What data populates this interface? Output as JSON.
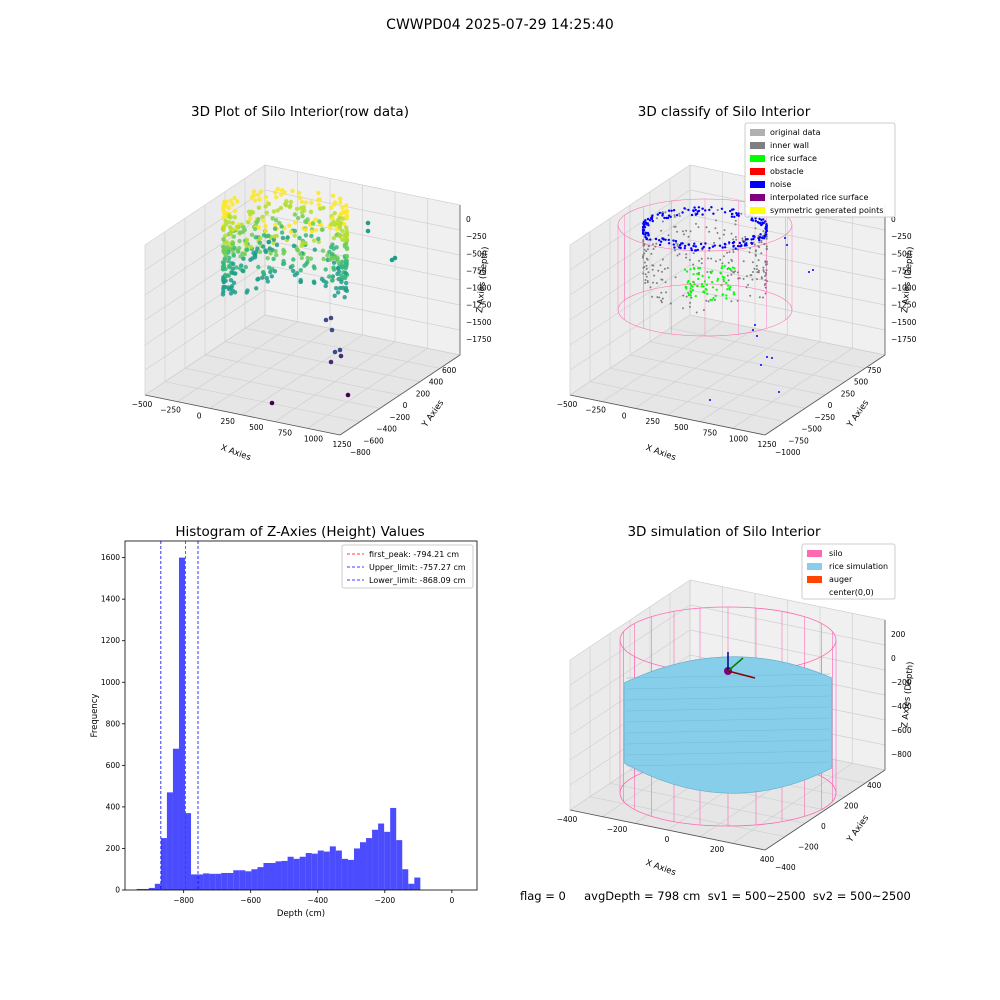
{
  "page": {
    "suptitle": "CWWPD04 2025-07-29 14:25:40",
    "bottom_text": "flag = 0     avgDepth = 798 cm  sv1 = 500~2500  sv2 = 500~2500"
  },
  "colors": {
    "histogram_bar": "#0000ff",
    "first_peak_line": "#ff0000",
    "limit_lines": "#0000ff",
    "silo": "#ff69b4",
    "rice_simulation": "#87ceeb",
    "auger": "#ff4500",
    "original_data": "#b0b0b0",
    "inner_wall": "#808080",
    "rice_surface": "#00ff00",
    "obstacle": "#ff0000",
    "noise": "#0000ff",
    "interpolated_rice_surface": "#800080",
    "symmetric_generated_points": "#ffff00"
  },
  "chart_data": [
    {
      "type": "scatter",
      "subtype": "scatter3d",
      "title": "3D Plot of Silo Interior(row data)",
      "xlabel": "X Axies",
      "ylabel": "Y Axies",
      "zlabel": "Z Axies (Depth)",
      "x_ticks": [
        "−500",
        "−250",
        "0",
        "250",
        "500",
        "750",
        "1000",
        "1250"
      ],
      "y_ticks": [
        "600",
        "400",
        "200",
        "0",
        "−200",
        "−400",
        "−600",
        "−800"
      ],
      "z_ticks": [
        "0",
        "−250",
        "−500",
        "−750",
        "−1000",
        "−1250",
        "−1500",
        "−1750"
      ],
      "colormap": "viridis by depth",
      "description_points": "dense cylindrical point cloud of silo wall near top plus scattered outlier points below"
    },
    {
      "type": "scatter",
      "subtype": "scatter3d",
      "title": "3D classify of Silo Interior",
      "xlabel": "X Axies",
      "ylabel": "Y Axies",
      "zlabel": "Z Axies (Depth)",
      "x_ticks": [
        "−500",
        "−250",
        "0",
        "250",
        "500",
        "750",
        "1000",
        "1250"
      ],
      "y_ticks": [
        "750",
        "500",
        "250",
        "0",
        "−250",
        "−500",
        "−750",
        "−1000"
      ],
      "z_ticks": [
        "0",
        "−250",
        "−500",
        "−750",
        "−1000",
        "−1250",
        "−1500",
        "−1750"
      ],
      "legend": [
        {
          "label": "original data",
          "color": "#b0b0b0"
        },
        {
          "label": "inner wall",
          "color": "#808080"
        },
        {
          "label": "rice surface",
          "color": "#00ff00"
        },
        {
          "label": "obstacle",
          "color": "#ff0000"
        },
        {
          "label": "noise",
          "color": "#0000ff"
        },
        {
          "label": "interpolated rice surface",
          "color": "#800080"
        },
        {
          "label": "symmetric generated points",
          "color": "#ffff00"
        }
      ],
      "legend_position": "top-right"
    },
    {
      "type": "bar",
      "subtype": "histogram",
      "title": "Histogram of Z-Axies (Height) Values",
      "xlabel": "Depth (cm)",
      "ylabel": "Frequency",
      "xlim": [
        -975,
        75
      ],
      "ylim": [
        0,
        1680
      ],
      "x_ticks": [
        -800,
        -600,
        -400,
        -200,
        0
      ],
      "x_tick_labels": [
        "−800",
        "−600",
        "−400",
        "−200",
        "0"
      ],
      "y_ticks": [
        0,
        200,
        400,
        600,
        800,
        1000,
        1200,
        1400,
        1600
      ],
      "bin_width": 18,
      "bin_starts": [
        -940,
        -922,
        -904,
        -886,
        -868,
        -850,
        -832,
        -814,
        -796,
        -778,
        -760,
        -742,
        -724,
        -706,
        -688,
        -670,
        -652,
        -634,
        -616,
        -598,
        -580,
        -562,
        -544,
        -526,
        -508,
        -490,
        -472,
        -454,
        -436,
        -418,
        -400,
        -382,
        -364,
        -346,
        -328,
        -310,
        -292,
        -274,
        -256,
        -238,
        -220,
        -202,
        -184,
        -166,
        -148,
        -130,
        -112,
        -94,
        -76,
        -58,
        -40,
        -22,
        -4
      ],
      "values": [
        5,
        5,
        10,
        30,
        250,
        470,
        680,
        1600,
        370,
        75,
        75,
        80,
        78,
        78,
        82,
        82,
        95,
        95,
        90,
        100,
        110,
        130,
        130,
        138,
        140,
        160,
        150,
        160,
        178,
        175,
        190,
        185,
        210,
        190,
        150,
        145,
        200,
        230,
        250,
        290,
        320,
        280,
        395,
        240,
        100,
        30,
        60,
        0,
        0,
        0,
        0,
        0,
        0
      ],
      "vlines": [
        {
          "x": -794.21,
          "label": "first_peak: -794.21 cm",
          "color": "#ff0000"
        },
        {
          "x": -757.27,
          "label": "Upper_limit: -757.27 cm",
          "color": "#0000ff"
        },
        {
          "x": -868.09,
          "label": "Lower_limit: -868.09 cm",
          "color": "#0000ff"
        }
      ],
      "legend_position": "top-right"
    },
    {
      "type": "scatter",
      "subtype": "surface3d",
      "title": "3D simulation of Silo Interior",
      "xlabel": "X Axies",
      "ylabel": "Y Axies",
      "zlabel": "Z Axies (Depth)",
      "x_ticks": [
        "−400",
        "−200",
        "0",
        "200",
        "400"
      ],
      "y_ticks": [
        "400",
        "200",
        "0",
        "−200",
        "−400"
      ],
      "z_ticks": [
        "200",
        "0",
        "−200",
        "−400",
        "−600",
        "−800"
      ],
      "legend": [
        {
          "label": "silo",
          "color": "#ff69b4"
        },
        {
          "label": "rice simulation",
          "color": "#87ceeb"
        },
        {
          "label": "auger",
          "color": "#ff4500"
        },
        {
          "label": "center(0,0)",
          "color": ""
        }
      ],
      "legend_position": "top-right"
    }
  ]
}
